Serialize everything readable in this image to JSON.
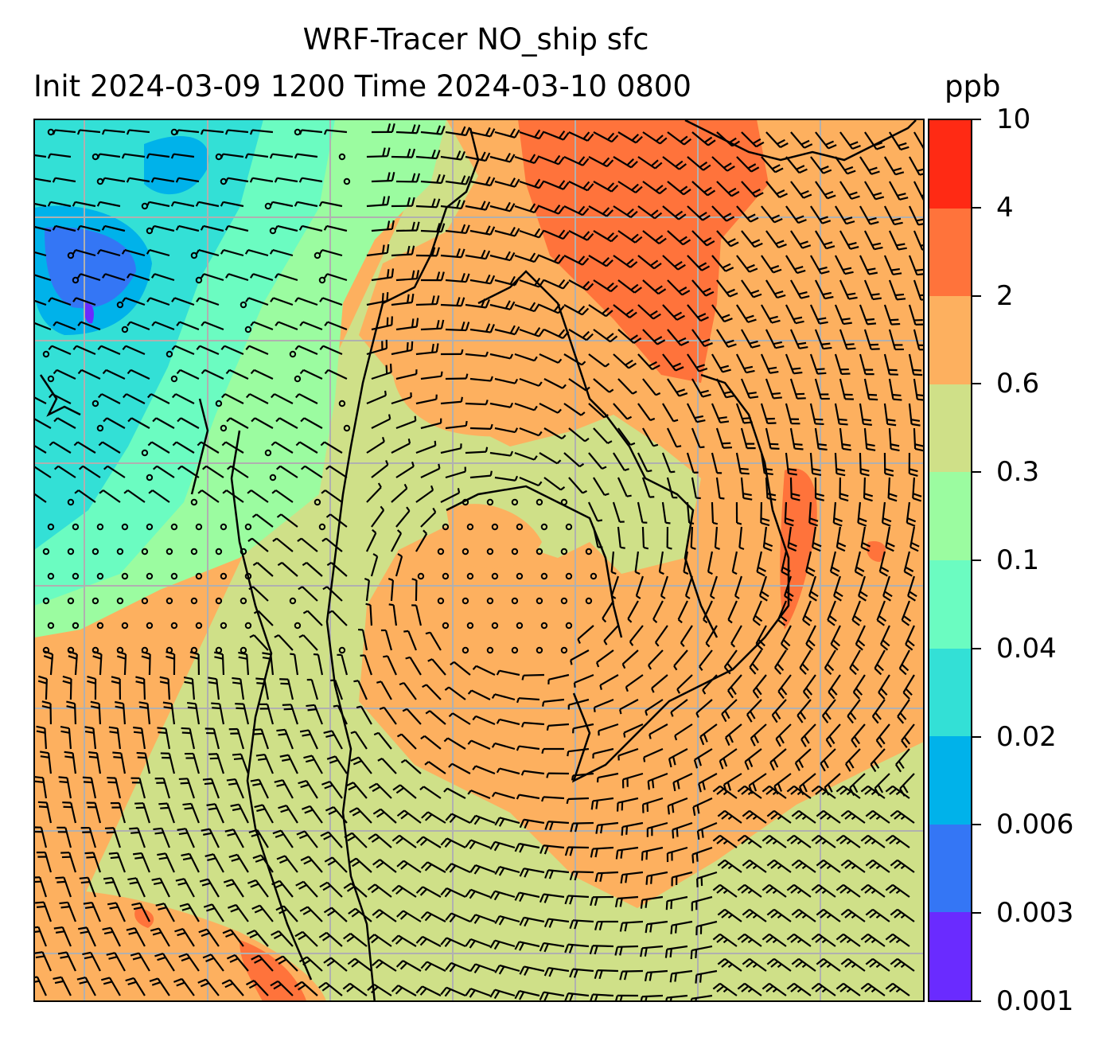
{
  "title": {
    "line1": "WRF-Tracer NO_ship sfc",
    "line2": "Init 2024-03-09 1200 Time 2024-03-10 0800",
    "units": "ppb"
  },
  "chart_data": {
    "type": "heatmap",
    "subtype": "filled contour map with wind barbs",
    "title": "WRF-Tracer NO_ship sfc / Init 2024-03-09 1200 Time 2024-03-10 0800",
    "variable": "NO_ship surface concentration",
    "units": "ppb",
    "levels": [
      0.001,
      0.003,
      0.006,
      0.02,
      0.04,
      0.1,
      0.3,
      0.6,
      2,
      4,
      10
    ],
    "level_labels": [
      "0.001",
      "0.003",
      "0.006",
      "0.02",
      "0.04",
      "0.1",
      "0.3",
      "0.6",
      "2",
      "4",
      "10"
    ],
    "colors": [
      "#6a2bff",
      "#3476f5",
      "#00b2ea",
      "#33e0d6",
      "#6bfcc1",
      "#9bfca0",
      "#cfe088",
      "#fdb05f",
      "#ff733b",
      "#ff2a14"
    ],
    "colorbar_position": "right",
    "grid": true,
    "overlays": [
      "wind barbs",
      "coastlines"
    ]
  }
}
